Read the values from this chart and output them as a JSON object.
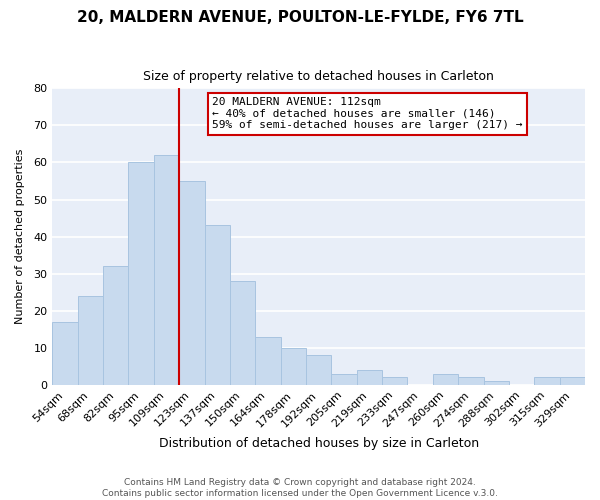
{
  "title": "20, MALDERN AVENUE, POULTON-LE-FYLDE, FY6 7TL",
  "subtitle": "Size of property relative to detached houses in Carleton",
  "xlabel": "Distribution of detached houses by size in Carleton",
  "ylabel": "Number of detached properties",
  "bar_labels": [
    "54sqm",
    "68sqm",
    "82sqm",
    "95sqm",
    "109sqm",
    "123sqm",
    "137sqm",
    "150sqm",
    "164sqm",
    "178sqm",
    "192sqm",
    "205sqm",
    "219sqm",
    "233sqm",
    "247sqm",
    "260sqm",
    "274sqm",
    "288sqm",
    "302sqm",
    "315sqm",
    "329sqm"
  ],
  "bar_values": [
    17,
    24,
    32,
    60,
    62,
    55,
    43,
    28,
    13,
    10,
    8,
    3,
    4,
    2,
    0,
    3,
    2,
    1,
    0,
    2,
    2
  ],
  "bar_color": "#c8daee",
  "bar_edgecolor": "#a8c4e0",
  "vline_x_idx": 4.5,
  "vline_color": "#cc0000",
  "ylim": [
    0,
    80
  ],
  "yticks": [
    0,
    10,
    20,
    30,
    40,
    50,
    60,
    70,
    80
  ],
  "annotation_title": "20 MALDERN AVENUE: 112sqm",
  "annotation_line1": "← 40% of detached houses are smaller (146)",
  "annotation_line2": "59% of semi-detached houses are larger (217) →",
  "annotation_box_facecolor": "white",
  "annotation_box_edgecolor": "#cc0000",
  "plot_bg_color": "#e8eef8",
  "fig_bg_color": "#ffffff",
  "grid_color": "#ffffff",
  "footer1": "Contains HM Land Registry data © Crown copyright and database right 2024.",
  "footer2": "Contains public sector information licensed under the Open Government Licence v.3.0.",
  "title_fontsize": 11,
  "subtitle_fontsize": 9,
  "xlabel_fontsize": 9,
  "ylabel_fontsize": 8,
  "tick_fontsize": 8,
  "annotation_fontsize": 8,
  "footer_fontsize": 6.5
}
